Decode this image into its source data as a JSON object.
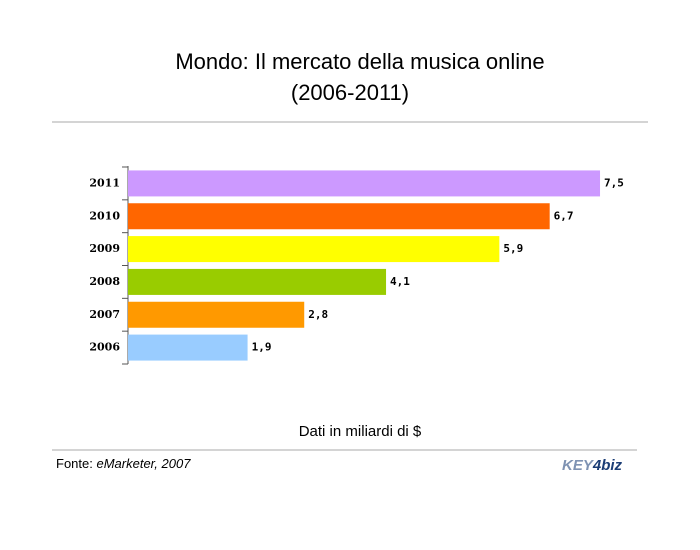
{
  "chart_data": {
    "type": "bar",
    "orientation": "horizontal",
    "title": [
      "Mondo: Il mercato della musica online",
      "(2006-2011)"
    ],
    "categories": [
      "2011",
      "2010",
      "2009",
      "2008",
      "2007",
      "2006"
    ],
    "values": [
      7.5,
      6.7,
      5.9,
      4.1,
      2.8,
      1.9
    ],
    "value_labels": [
      "7,5",
      "6,7",
      "5,9",
      "4,1",
      "2,8",
      "1,9"
    ],
    "colors": [
      "#cc99ff",
      "#ff6600",
      "#ffff00",
      "#99cc00",
      "#ff9900",
      "#99ccff"
    ],
    "xlim": [
      0,
      8
    ],
    "note": "Dati in miliardi di $",
    "source_label": "Fonte:",
    "source": "eMarketer, 2007",
    "logo": [
      "KEY",
      "4",
      "biz"
    ]
  }
}
